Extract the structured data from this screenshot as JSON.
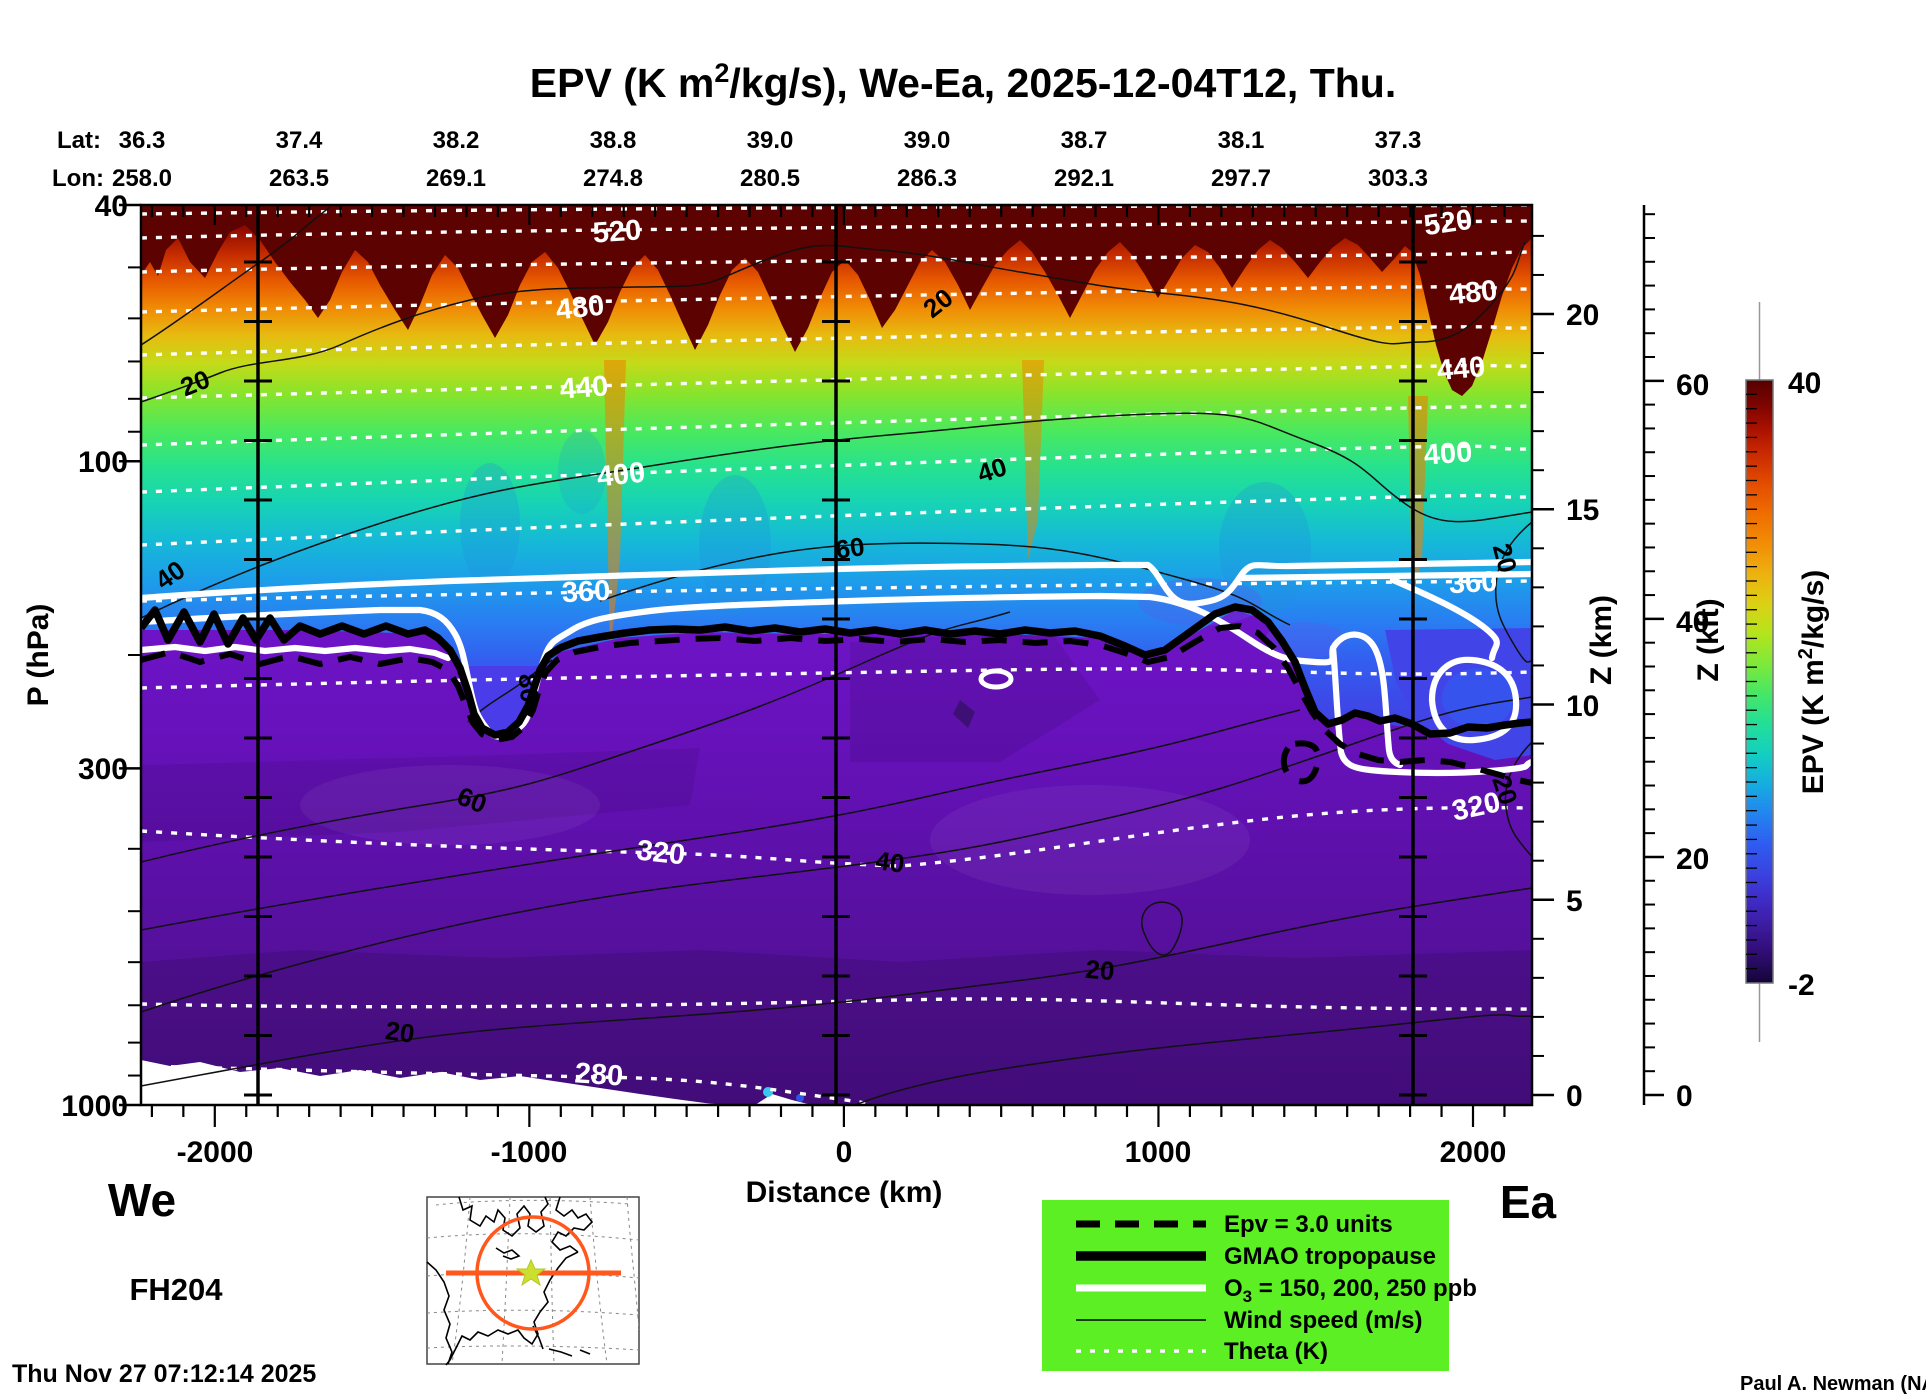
{
  "title": {
    "pre": "EPV (K m",
    "sup": "2",
    "post": "/kg/s), We-Ea, 2025-12-04T12, Thu."
  },
  "header": {
    "lat_label": "Lat:",
    "lon_label": "Lon:",
    "lat": [
      "36.3",
      "37.4",
      "38.2",
      "38.8",
      "39.0",
      "39.0",
      "38.7",
      "38.1",
      "37.3"
    ],
    "lon": [
      "258.0",
      "263.5",
      "269.1",
      "274.8",
      "280.5",
      "286.3",
      "292.1",
      "297.7",
      "303.3"
    ]
  },
  "axes": {
    "p": {
      "label": "P (hPa)",
      "ticks": [
        "40",
        "100",
        "300",
        "1000"
      ]
    },
    "x": {
      "label": "Distance (km)",
      "ticks": [
        "-2000",
        "-1000",
        "0",
        "1000",
        "2000"
      ]
    },
    "zkm": {
      "label": "Z (km)",
      "ticks": [
        "0",
        "5",
        "10",
        "15",
        "20"
      ]
    },
    "zkft": {
      "label": "Z (kft)",
      "ticks": [
        "0",
        "20",
        "40",
        "60"
      ]
    }
  },
  "colorbar": {
    "max": "40",
    "min": "-2",
    "label": {
      "pre": "EPV (K m",
      "sup": "2",
      "post": "/kg/s)"
    }
  },
  "contour_labels": {
    "theta_mid": [
      "520",
      "480",
      "440",
      "400",
      "360",
      "320",
      "280"
    ],
    "theta_right": [
      "520",
      "480",
      "440",
      "400",
      "360",
      "320"
    ],
    "wind": [
      "20",
      "40",
      "20",
      "40",
      "60",
      "80",
      "60",
      "40",
      "20",
      "20",
      "20",
      "20"
    ]
  },
  "legend": {
    "items": [
      "Epv = 3.0 units",
      "GMAO tropopause",
      "Wind speed (m/s)",
      "Theta (K)"
    ],
    "o3": {
      "pre": "O",
      "sub": "3",
      "post": " = 150, 200, 250 ppb"
    }
  },
  "corners": {
    "we": "We",
    "ea": "Ea",
    "flight": "FH204",
    "timestamp": "Thu Nov 27 07:12:14 2025",
    "credit": "Paul A. Newman (NASA"
  },
  "chart_data": {
    "type": "heatmap",
    "title": "EPV (K m2/kg/s), We-Ea, 2025-12-04T12, Thu.",
    "xlabel": "Distance (km)",
    "ylabel": "P (hPa)",
    "y2label": "Z (km)",
    "y3label": "Z (kft)",
    "x_ticks": [
      -2000,
      -1000,
      0,
      1000,
      2000
    ],
    "x_range_km": [
      -2235,
      2190
    ],
    "y_scale": "log-pressure",
    "y_ticks_hPa": [
      40,
      100,
      300,
      1000
    ],
    "y_range_hPa": [
      40,
      1000
    ],
    "z_km_ticks": [
      0,
      5,
      10,
      15,
      20
    ],
    "z_kft_ticks": [
      0,
      20,
      40,
      60
    ],
    "colorbar": {
      "label": "EPV (K m2/kg/s)",
      "min": -2,
      "max": 40,
      "palette_bottom_to_top": [
        "#140436",
        "#340f7e",
        "#3d1da5",
        "#3a42e0",
        "#2f5cf0",
        "#2384f0",
        "#15ade0",
        "#14cfc0",
        "#22df97",
        "#46e766",
        "#7fe93a",
        "#b4e41c",
        "#ddd014",
        "#edb00e",
        "#f28c05",
        "#ef6c00",
        "#e24b00",
        "#c92800",
        "#a81000",
        "#550000"
      ]
    },
    "track": {
      "lat": [
        36.3,
        37.4,
        38.2,
        38.8,
        39.0,
        39.0,
        38.7,
        38.1,
        37.3
      ],
      "lon": [
        258.0,
        263.5,
        269.1,
        274.8,
        280.5,
        286.3,
        292.1,
        297.7,
        303.3
      ]
    },
    "contours": {
      "theta_K": {
        "style": "white dotted",
        "labeled_levels": [
          280,
          320,
          360,
          400,
          440,
          480,
          520
        ]
      },
      "wind_speed_ms": {
        "style": "thin black solid",
        "labeled_levels": [
          20,
          40,
          60,
          80
        ]
      },
      "ozone_ppb": {
        "style": "thick white solid",
        "levels": [
          150,
          200,
          250
        ]
      },
      "gmao_tropopause": {
        "style": "thick black solid"
      },
      "epv_3_units": {
        "style": "thick black dashed"
      }
    },
    "vertical_marker_lines_km": [
      -1860,
      -25,
      1810
    ],
    "section_endpoints": {
      "west_label": "We",
      "east_label": "Ea"
    },
    "flight_id": "FH204",
    "generated": "Thu Nov 27 07:12:14 2025",
    "credit": "Paul A. Newman (NASA",
    "legend_position": "bottom-center-right",
    "grid": false
  }
}
